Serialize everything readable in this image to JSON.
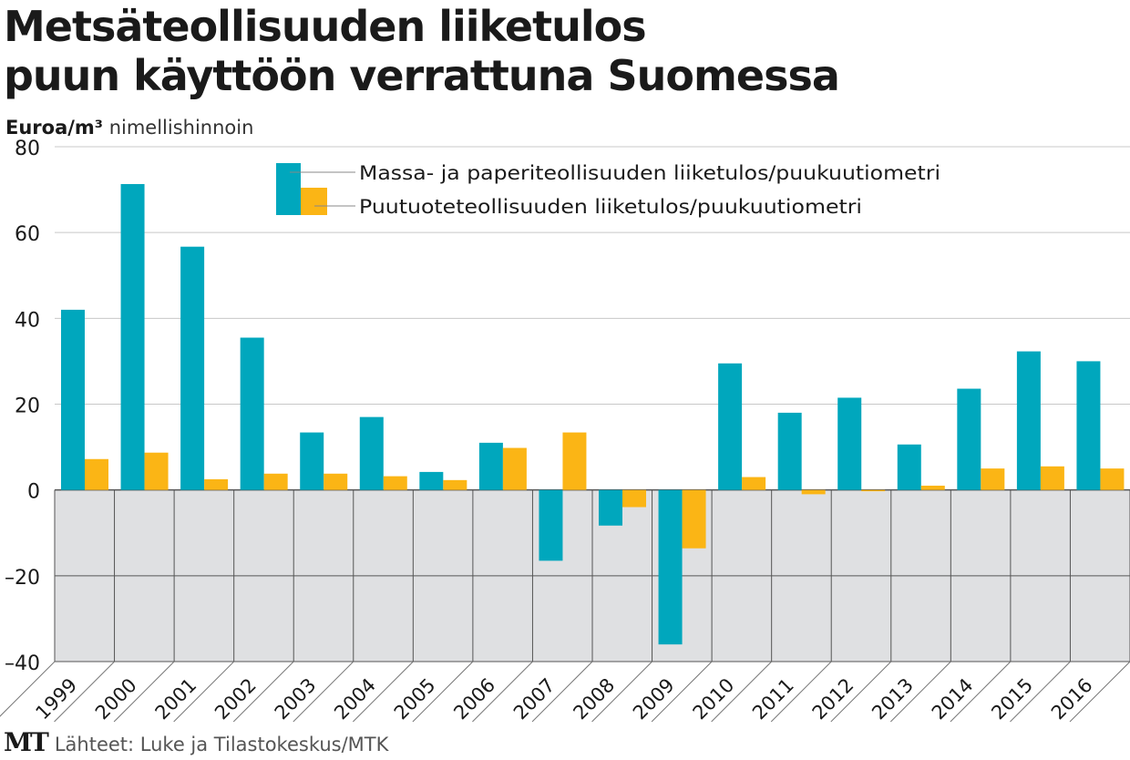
{
  "header": {
    "title_line1": "Metsäteollisuuden liiketulos",
    "title_line2": "puun käyttöön verrattuna Suomessa",
    "unit_bold": "Euroa/m³",
    "unit_rest": "nimellishinnoin"
  },
  "footer": {
    "logo": "MT",
    "source": "Lähteet: Luke ja Tilastokeskus/MTK"
  },
  "colors": {
    "series1": "#00a7bd",
    "series2": "#fbb515",
    "negative_bg": "#dfe0e2",
    "grid": "#c8c8c8",
    "divider": "#555555"
  },
  "chart_data": {
    "type": "bar",
    "title": "Metsäteollisuuden liiketulos puun käyttöön verrattuna Suomessa",
    "ylabel": "Euroa/m³ nimellishinnoin",
    "xlabel": "",
    "ylim": [
      -40,
      80
    ],
    "yticks": [
      80,
      60,
      40,
      20,
      0,
      -20,
      -40
    ],
    "ytick_labels": [
      "80",
      "60",
      "40",
      "20",
      "0",
      "–20",
      "–40"
    ],
    "grid": true,
    "legend_position": "top-center",
    "categories": [
      "1999",
      "2000",
      "2001",
      "2002",
      "2003",
      "2004",
      "2005",
      "2006",
      "2007",
      "2008",
      "2009",
      "2010",
      "2011",
      "2012",
      "2013",
      "2014",
      "2015",
      "2016"
    ],
    "series": [
      {
        "name": "Massa- ja paperiteollisuuden liiketulos/puukuutiometri",
        "color": "#00a7bd",
        "values": [
          42,
          71.3,
          56.7,
          35.5,
          13.4,
          17,
          4.2,
          11,
          -16.5,
          -8.3,
          -36,
          29.5,
          18,
          21.5,
          10.6,
          23.6,
          32.3,
          30
        ]
      },
      {
        "name": "Puutuoteteollisuuden liiketulos/puukuutiometri",
        "color": "#fbb515",
        "values": [
          7.2,
          8.7,
          2.5,
          3.8,
          3.8,
          3.2,
          2.3,
          9.8,
          13.4,
          -4,
          -13.6,
          3,
          -1,
          -0.3,
          1,
          5,
          5.5,
          5
        ]
      }
    ]
  }
}
